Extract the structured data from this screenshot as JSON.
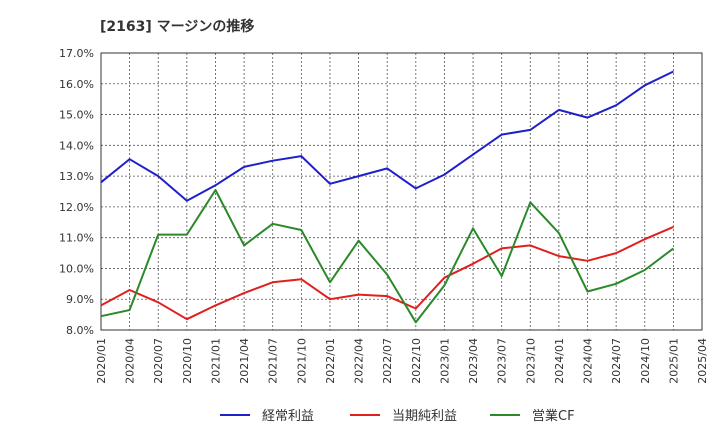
{
  "chart_data": {
    "type": "line",
    "title": "[2163]  マージンの推移",
    "x": [
      "2020/01",
      "2020/04",
      "2020/07",
      "2020/10",
      "2021/01",
      "2021/04",
      "2021/07",
      "2021/10",
      "2022/01",
      "2022/04",
      "2022/07",
      "2022/10",
      "2023/01",
      "2023/04",
      "2023/07",
      "2023/10",
      "2024/01",
      "2024/04",
      "2024/07",
      "2024/10",
      "2025/01",
      "2025/04"
    ],
    "y_ticks": [
      "8.0%",
      "9.0%",
      "10.0%",
      "11.0%",
      "12.0%",
      "13.0%",
      "14.0%",
      "15.0%",
      "16.0%",
      "17.0%"
    ],
    "ylim": [
      8.0,
      17.0
    ],
    "grid": true,
    "legend_position": "bottom",
    "series": [
      {
        "name": "経常利益",
        "color": "#1f1fcc",
        "values": [
          12.8,
          13.55,
          13.0,
          12.2,
          12.7,
          13.3,
          13.5,
          13.65,
          12.75,
          13.0,
          13.25,
          12.6,
          13.05,
          13.7,
          14.35,
          14.5,
          15.15,
          14.9,
          15.3,
          15.95,
          16.4,
          null
        ]
      },
      {
        "name": "当期純利益",
        "color": "#e01f1f",
        "values": [
          8.8,
          9.3,
          8.9,
          8.35,
          8.8,
          9.2,
          9.55,
          9.65,
          9.0,
          9.15,
          9.1,
          8.7,
          9.7,
          10.15,
          10.65,
          10.75,
          10.4,
          10.25,
          10.5,
          10.95,
          11.35,
          null
        ]
      },
      {
        "name": "営業CF",
        "color": "#2a8a2a",
        "values": [
          8.45,
          8.65,
          11.1,
          11.1,
          12.55,
          10.75,
          11.45,
          11.25,
          9.55,
          10.9,
          9.8,
          8.25,
          9.45,
          11.3,
          9.75,
          12.15,
          11.15,
          9.25,
          9.5,
          9.95,
          10.65,
          null
        ]
      }
    ]
  }
}
